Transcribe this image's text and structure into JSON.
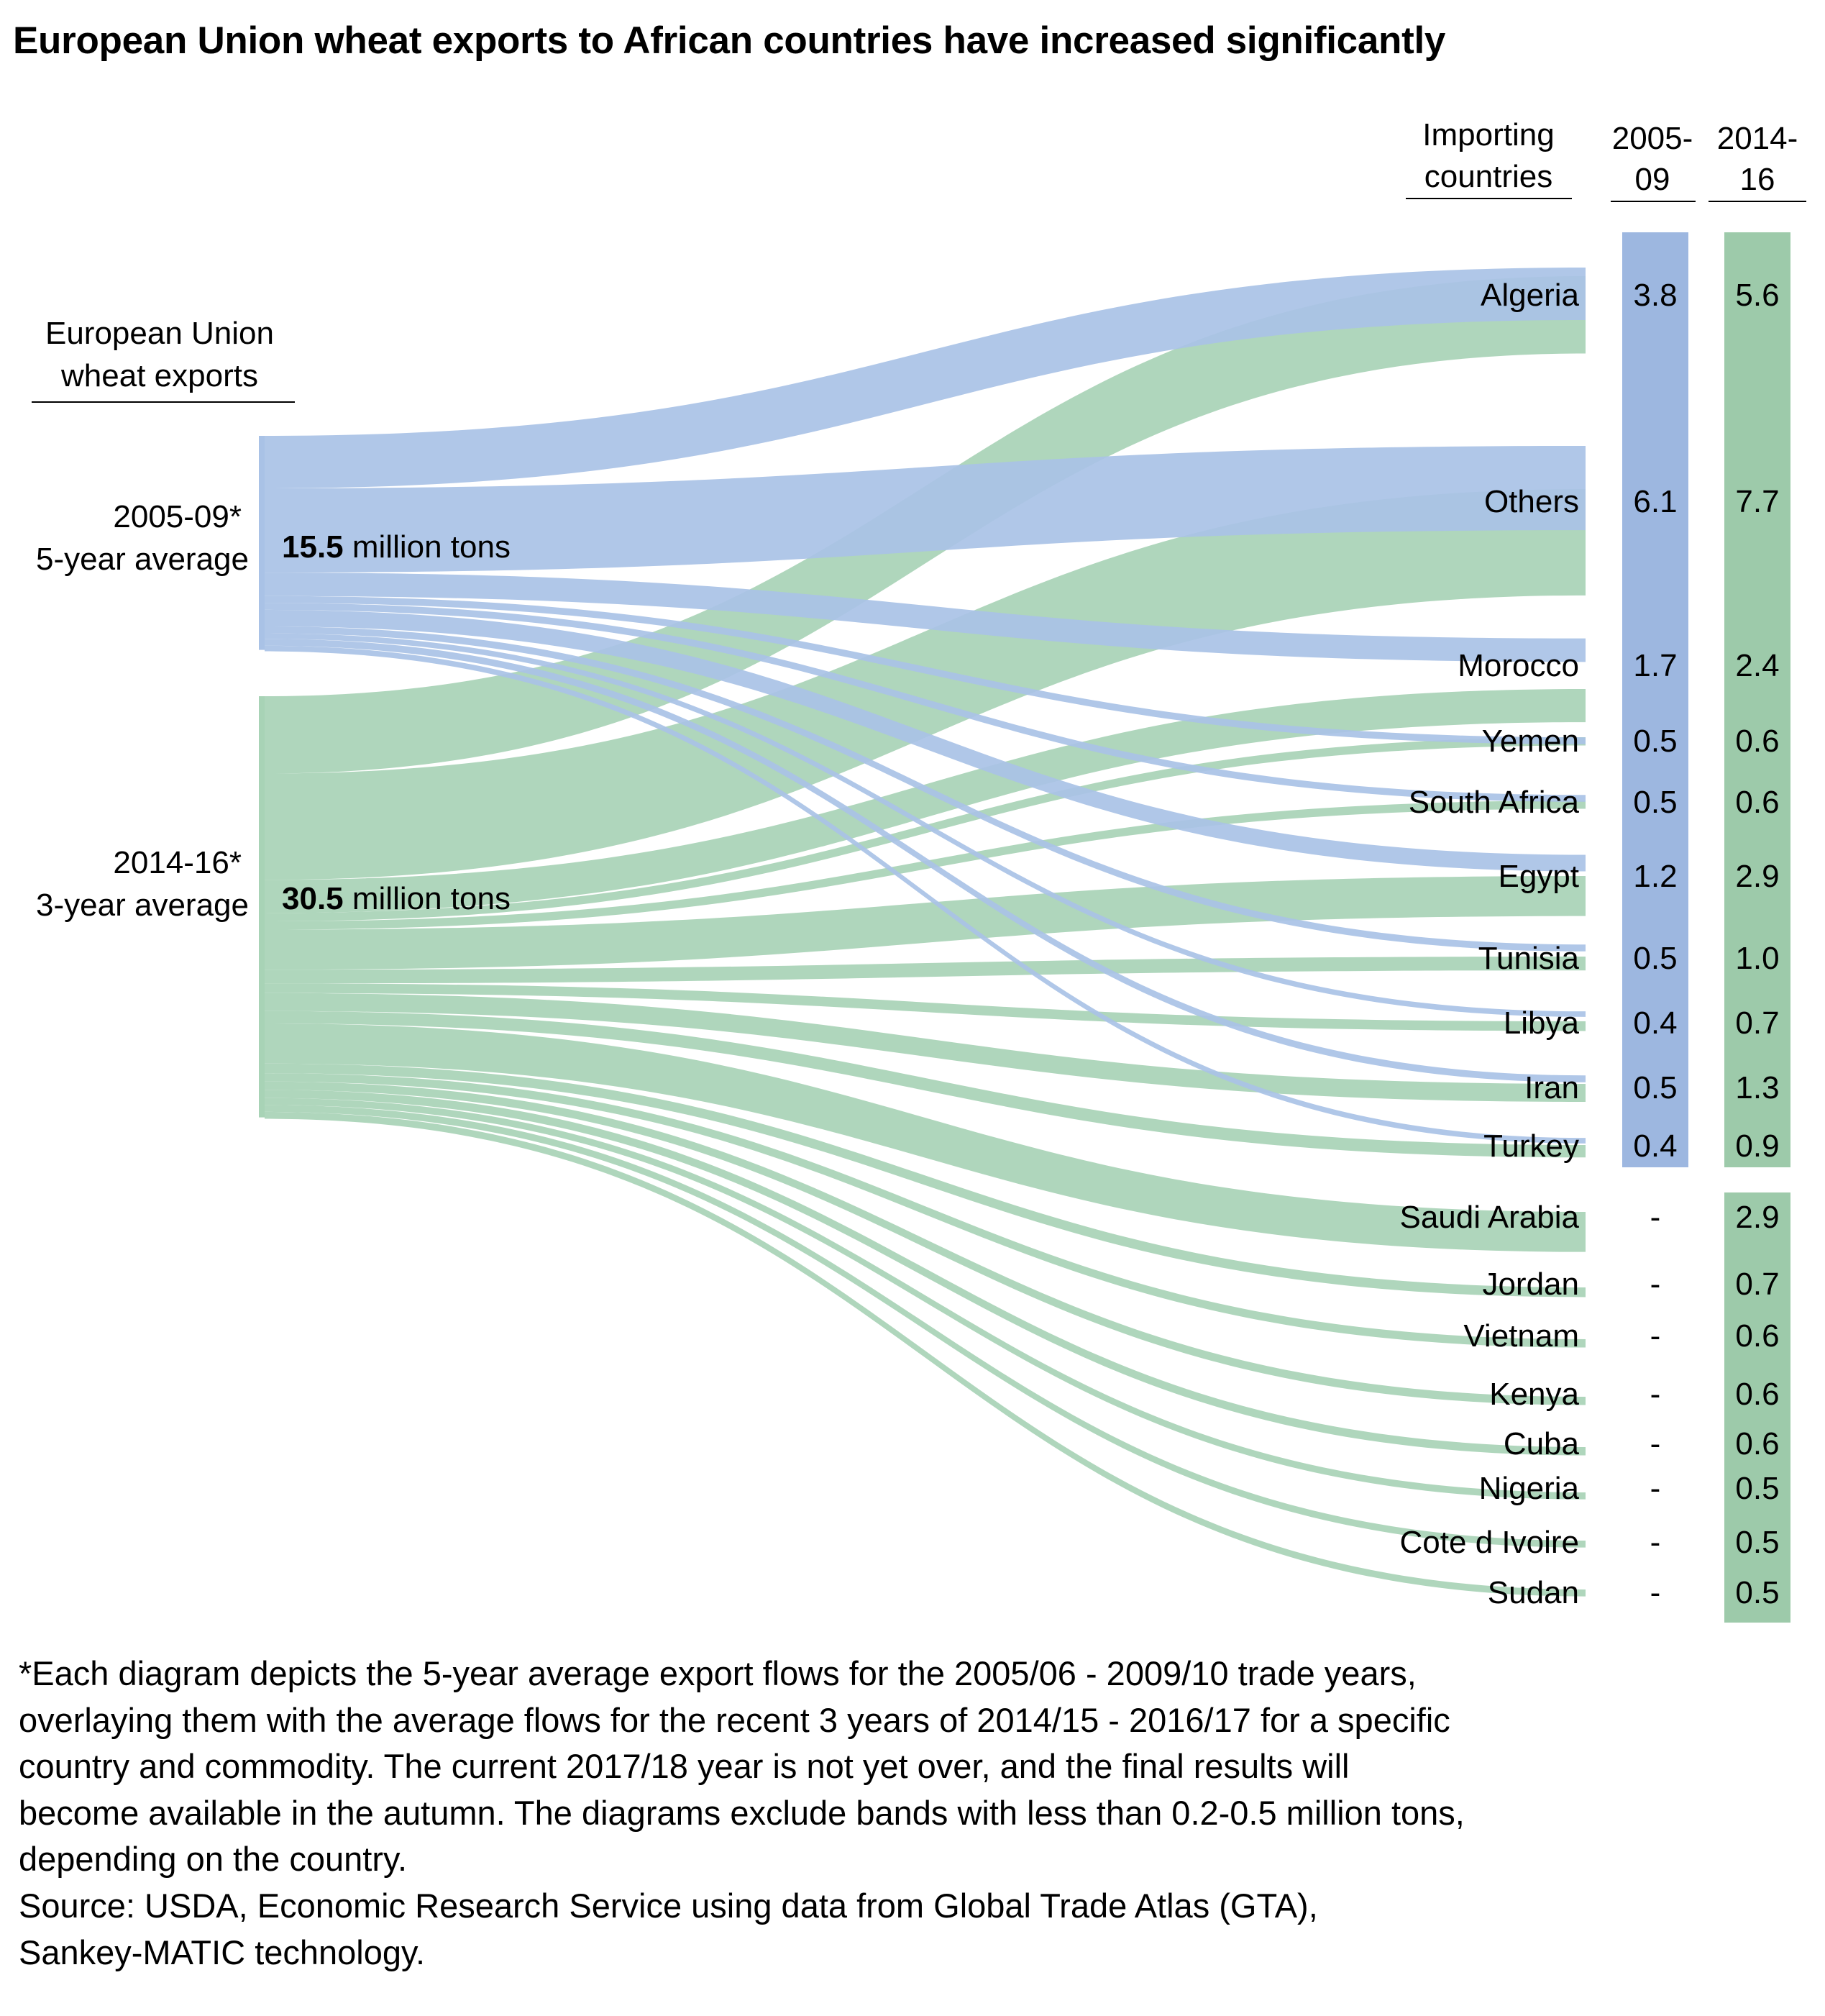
{
  "title": "European Union wheat exports to African countries have increased significantly",
  "chart_data": {
    "type": "sankey",
    "unit": "million tons",
    "source_header": "European Union\nwheat exports",
    "sources": [
      {
        "id": "2005-09",
        "label_line1": "2005-09*",
        "label_line2": "5-year average",
        "total_bold": "15.5",
        "total_text": " million tons",
        "total": 15.5,
        "color": "#a9c2e6"
      },
      {
        "id": "2014-16",
        "label_line1": "2014-16*",
        "label_line2": "3-year average",
        "total_bold": "30.5",
        "total_text": " million tons",
        "total": 30.5,
        "color": "#a8d3b6"
      }
    ],
    "columns": {
      "countries_header": "Importing\ncountries",
      "col1_header": "2005-\n09",
      "col2_header": "2014-\n16",
      "col1_color": "#9db7e0",
      "col2_color": "#9dcaaa"
    },
    "countries": [
      {
        "name": "Algeria",
        "v2005": 3.8,
        "v2014": 5.6,
        "t2005": "3.8",
        "t2014": "5.6"
      },
      {
        "name": "Others",
        "v2005": 6.1,
        "v2014": 7.7,
        "t2005": "6.1",
        "t2014": "7.7"
      },
      {
        "name": "Morocco",
        "v2005": 1.7,
        "v2014": 2.4,
        "t2005": "1.7",
        "t2014": "2.4"
      },
      {
        "name": "Yemen",
        "v2005": 0.5,
        "v2014": 0.6,
        "t2005": "0.5",
        "t2014": "0.6"
      },
      {
        "name": "South Africa",
        "v2005": 0.5,
        "v2014": 0.6,
        "t2005": "0.5",
        "t2014": "0.6"
      },
      {
        "name": "Egypt",
        "v2005": 1.2,
        "v2014": 2.9,
        "t2005": "1.2",
        "t2014": "2.9"
      },
      {
        "name": "Tunisia",
        "v2005": 0.5,
        "v2014": 1.0,
        "t2005": "0.5",
        "t2014": "1.0"
      },
      {
        "name": "Libya",
        "v2005": 0.4,
        "v2014": 0.7,
        "t2005": "0.4",
        "t2014": "0.7"
      },
      {
        "name": "Iran",
        "v2005": 0.5,
        "v2014": 1.3,
        "t2005": "0.5",
        "t2014": "1.3"
      },
      {
        "name": "Turkey",
        "v2005": 0.4,
        "v2014": 0.9,
        "t2005": "0.4",
        "t2014": "0.9"
      },
      {
        "name": "Saudi Arabia",
        "v2005": null,
        "v2014": 2.9,
        "t2005": "-",
        "t2014": "2.9"
      },
      {
        "name": "Jordan",
        "v2005": null,
        "v2014": 0.7,
        "t2005": "-",
        "t2014": "0.7"
      },
      {
        "name": "Vietnam",
        "v2005": null,
        "v2014": 0.6,
        "t2005": "-",
        "t2014": "0.6"
      },
      {
        "name": "Kenya",
        "v2005": null,
        "v2014": 0.6,
        "t2005": "-",
        "t2014": "0.6"
      },
      {
        "name": "Cuba",
        "v2005": null,
        "v2014": 0.6,
        "t2005": "-",
        "t2014": "0.6"
      },
      {
        "name": "Nigeria",
        "v2005": null,
        "v2014": 0.5,
        "t2005": "-",
        "t2014": "0.5"
      },
      {
        "name": "Cote d Ivoire",
        "v2005": null,
        "v2014": 0.5,
        "t2005": "-",
        "t2014": "0.5"
      },
      {
        "name": "Sudan",
        "v2005": null,
        "v2014": 0.5,
        "t2005": "-",
        "t2014": "0.5"
      }
    ]
  },
  "footnote": "*Each diagram depicts the 5-year average export flows for the 2005/06 - 2009/10 trade years,\noverlaying them with the average flows for the recent 3 years of 2014/15 - 2016/17 for a specific\ncountry and commodity. The current 2017/18 year is not yet over, and the final results will\nbecome available in the autumn. The diagrams exclude bands with less than 0.2-0.5 million tons,\ndepending on the country.",
  "source": "Source: USDA, Economic Research Service using data from Global Trade Atlas (GTA),\nSankey-MATIC technology."
}
